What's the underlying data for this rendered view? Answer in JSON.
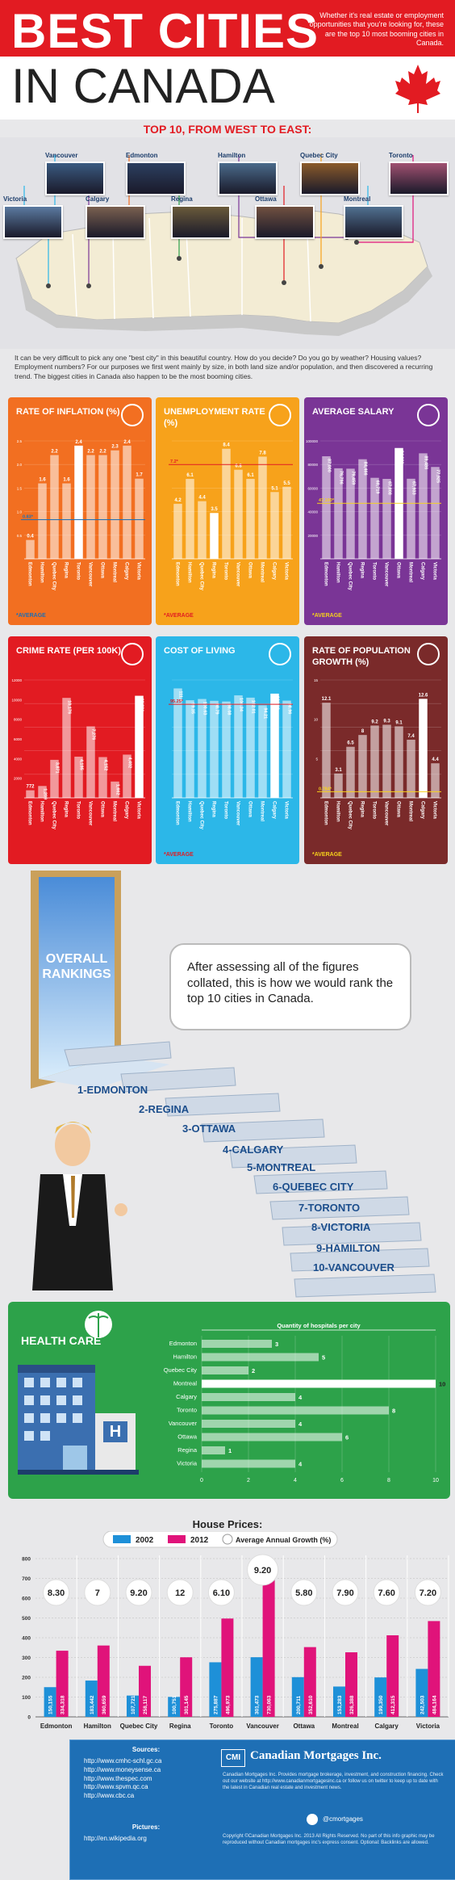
{
  "header": {
    "title_line1": "BEST CITIES",
    "title_line2": "IN CANADA",
    "tagline": "Whether it's real estate or employment opportunities that you're looking for, these are the top 10 most booming cities in Canada."
  },
  "map": {
    "heading": "TOP 10, FROM WEST TO EAST:",
    "cities": [
      "Victoria",
      "Vancouver",
      "Calgary",
      "Edmonton",
      "Regina",
      "Hamilton",
      "Ottawa",
      "Quebec City",
      "Montreal",
      "Toronto"
    ]
  },
  "intro": "It can be very difficult to pick any one \"best city\" in this beautiful country. How do you decide? Do you go by weather? Housing values? Employment numbers? For our purposes we first went mainly by size, in both land size and/or population, and then discovered a recurring trend. The biggest cities in Canada also happen to be the most booming cities.",
  "colors": {
    "inflation": "#f26f21",
    "unemployment": "#f7a21b",
    "salary": "#7a3596",
    "crime": "#e21b22",
    "cost": "#2cb7e8",
    "population": "#7a2a2a",
    "health": "#2da24a",
    "house_2002": "#1e90d8",
    "house_2012": "#e0137a"
  },
  "chart_data": [
    {
      "type": "bar",
      "title": "RATE OF INFLATION (%)",
      "categories": [
        "Edmonton",
        "Hamilton",
        "Quebec City",
        "Regina",
        "Toronto",
        "Vancouver",
        "Ottawa",
        "Montreal",
        "Calgary",
        "Victoria"
      ],
      "values": [
        0.4,
        1.6,
        2.2,
        1.6,
        2.4,
        2.2,
        2.2,
        2.3,
        2.4,
        1.7
      ],
      "value_labels": [
        "0.4",
        "1.6",
        "2.2",
        "1.6",
        "2.4",
        "2.2",
        "2.2",
        "2.3",
        "2.4",
        "1.7"
      ],
      "highlight_index": 4,
      "average": 0.83,
      "average_label": "0.83*",
      "ylim": [
        0,
        2.5
      ],
      "yticks": [
        "0.5",
        "1.0",
        "1.5",
        "2.0",
        "2.5"
      ],
      "footnote": "*AVERAGE"
    },
    {
      "type": "bar",
      "title": "UNEMPLOYMENT RATE (%)",
      "categories": [
        "Edmonton",
        "Hamilton",
        "Quebec City",
        "Regina",
        "Toronto",
        "Vancouver",
        "Ottawa",
        "Montreal",
        "Calgary",
        "Victoria"
      ],
      "values": [
        4.2,
        6.1,
        4.4,
        3.5,
        8.4,
        6.8,
        6.1,
        7.8,
        5.1,
        5.5
      ],
      "value_labels": [
        "4.2",
        "6.1",
        "4.4",
        "3.5",
        "8.4",
        "6.8",
        "6.1",
        "7.8",
        "5.1",
        "5.5"
      ],
      "highlight_index": 3,
      "average": 7.2,
      "average_label": "7.2*",
      "ylim": [
        0,
        9
      ],
      "footnote": "*AVERAGE"
    },
    {
      "type": "bar",
      "title": "AVERAGE SALARY",
      "categories": [
        "Edmonton",
        "Hamilton",
        "Quebec City",
        "Regina",
        "Toronto",
        "Vancouver",
        "Ottawa",
        "Montreal",
        "Calgary",
        "Victoria"
      ],
      "values": [
        87000,
        76796,
        76459,
        84466,
        68719,
        67808,
        94000,
        67933,
        89486,
        77925
      ],
      "value_labels": [
        "87,000",
        "76,796",
        "76,459",
        "84,466",
        "68,719",
        "67,808",
        "94,000",
        "67,933",
        "89,486",
        "77,925"
      ],
      "highlight_index": 6,
      "average": 47100,
      "average_label": "47,100*",
      "ylim": [
        0,
        100000
      ],
      "yticks": [
        "20000",
        "40000",
        "60000",
        "80000",
        "100000"
      ],
      "footnote": "*AVERAGE"
    },
    {
      "type": "bar",
      "title": "CRIME RATE (PER 100K)",
      "categories": [
        "Edmonton",
        "Hamilton",
        "Quebec City",
        "Regina",
        "Toronto",
        "Vancouver",
        "Ottawa",
        "Montreal",
        "Calgary",
        "Victoria"
      ],
      "values": [
        772,
        1209,
        3871,
        10176,
        4195,
        7276,
        4152,
        1662,
        4402,
        10391
      ],
      "value_labels": [
        "772",
        "1,209",
        "3,871",
        "10,176",
        "4,195",
        "7,276",
        "4,152",
        "1,662",
        "4,402",
        "10,391"
      ],
      "highlight_index": 9,
      "ylim": [
        0,
        12000
      ],
      "yticks": [
        "2000",
        "4000",
        "6000",
        "8000",
        "10000",
        "12000"
      ]
    },
    {
      "type": "bar",
      "title": "COST OF LIVING",
      "categories": [
        "Edmonton",
        "Hamilton",
        "Quebec City",
        "Regina",
        "Toronto",
        "Vancouver",
        "Ottawa",
        "Montreal",
        "Calgary",
        "Victoria"
      ],
      "values": [
        111.4,
        99.35,
        100.63,
        98.79,
        98.08,
        104.34,
        102.01,
        94.21,
        106.08,
        98.96
      ],
      "value_labels": [
        "111.4",
        "99.35",
        "100.63",
        "98.79",
        "98.08",
        "104.34",
        "102.01",
        "94.21",
        "106.08",
        "98.96"
      ],
      "highlight_index": 8,
      "average": 95.25,
      "average_label": "95.25*",
      "ylim": [
        0,
        120
      ],
      "footnote": "*AVERAGE"
    },
    {
      "type": "bar",
      "title": "RATE OF POPULATION GROWTH (%)",
      "categories": [
        "Edmonton",
        "Hamilton",
        "Quebec City",
        "Regina",
        "Toronto",
        "Vancouver",
        "Ottawa",
        "Montreal",
        "Calgary",
        "Victoria"
      ],
      "values": [
        12.1,
        3.1,
        6.5,
        8.0,
        9.2,
        9.3,
        9.1,
        7.4,
        12.6,
        4.4
      ],
      "value_labels": [
        "12.1",
        "3.1",
        "6.5",
        "8",
        "9.2",
        "9.3",
        "9.1",
        "7.4",
        "12.6",
        "4.4"
      ],
      "highlight_index": 8,
      "average": 0.784,
      "average_label": "0.784*",
      "ylim": [
        0,
        15
      ],
      "yticks": [
        "5",
        "10",
        "15"
      ],
      "footnote": "*AVERAGE"
    },
    {
      "type": "bar",
      "title": "Quantity of hospitals per city",
      "categories": [
        "Edmonton",
        "Hamilton",
        "Quebec City",
        "Montreal",
        "Calgary",
        "Toronto",
        "Vancouver",
        "Ottawa",
        "Regina",
        "Victoria"
      ],
      "values": [
        3,
        5,
        2,
        10,
        4,
        8,
        4,
        6,
        1,
        4
      ],
      "highlight_index": 3,
      "xlim": [
        0,
        10
      ],
      "xticks": [
        "0",
        "2",
        "4",
        "6",
        "8",
        "10"
      ]
    },
    {
      "type": "bar",
      "title": "House Prices:",
      "categories": [
        "Edmonton",
        "Hamilton",
        "Quebec City",
        "Regina",
        "Toronto",
        "Vancouver",
        "Ottawa",
        "Montreal",
        "Calgary",
        "Victoria"
      ],
      "series": [
        {
          "name": "2002",
          "values": [
            150155,
            183442,
            107721,
            100751,
            275887,
            301473,
            200711,
            153283,
            199350,
            242503
          ],
          "labels": [
            "150,155",
            "183,442",
            "107,721",
            "100,751",
            "275,887",
            "301,473",
            "200,711",
            "153,283",
            "199,350",
            "242,503"
          ]
        },
        {
          "name": "2012",
          "values": [
            334318,
            360659,
            258117,
            301145,
            496973,
            730063,
            352610,
            326388,
            412315,
            484164
          ],
          "labels": [
            "334,318",
            "360,659",
            "258,117",
            "301,145",
            "496,973",
            "730,063",
            "352,610",
            "326,388",
            "412,315",
            "484,164"
          ]
        }
      ],
      "growth": [
        "8.30",
        "7",
        "9.20",
        "12",
        "6.10",
        "9.20",
        "5.80",
        "7.90",
        "7.60",
        "7.20"
      ],
      "growth_legend": "Average Annual Growth (%)",
      "ylim": [
        0,
        800
      ],
      "yticks": [
        "0",
        "100",
        "200",
        "300",
        "400",
        "500",
        "600",
        "700",
        "800"
      ]
    }
  ],
  "rankings": {
    "door_title": "OVERALL RANKINGS",
    "bubble": "After assessing all of the figures collated, this is how we would rank the top 10 cities in Canada.",
    "list": [
      "1-EDMONTON",
      "2-REGINA",
      "3-OTTAWA",
      "4-CALGARY",
      "5-MONTREAL",
      "6-QUEBEC CITY",
      "7-TORONTO",
      "8-VICTORIA",
      "9-HAMILTON",
      "10-VANCOUVER"
    ]
  },
  "health": {
    "title": "HEALTH CARE",
    "building_letter": "H"
  },
  "footer": {
    "sources_title": "Sources:",
    "sources": [
      "http://www.cmhc-schl.gc.ca",
      "http://www.moneysense.ca",
      "http://www.thespec.com",
      "http://www.spvm.qc.ca",
      "http://www.cbc.ca"
    ],
    "pictures_title": "Pictures:",
    "pictures": "http://en.wikipedia.org",
    "brand": "Canadian Mortgages Inc.",
    "brand_mark": "CMI",
    "blurb": "Canadian Mortgages Inc. Provides mortgage brokerage, investment, and construction financing. Check out our website at http://www.canadianmortgagesinc.ca or follow us on twitter to keep up to date with the latest in Canadian real estate and investment news.",
    "twitter": "@cmortgages",
    "copyright": "Copyright ©Canadian Mortgages Inc. 2013 All Rights Reserved. No part of this info graphic may be reproduced without Canadian mortgages inc's express consent. Optional: Backlinks are allowed."
  }
}
